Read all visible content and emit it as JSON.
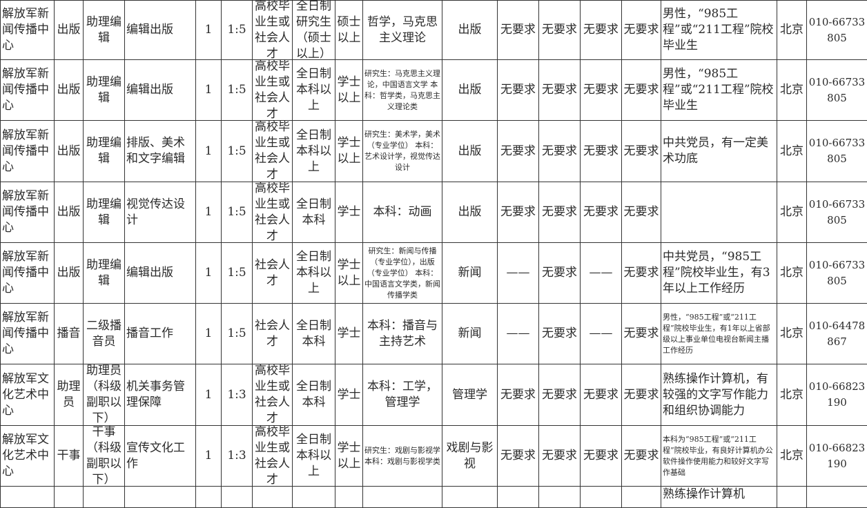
{
  "table": {
    "rows": [
      [
        "解放军新闻传播中心",
        "出版",
        "助理编辑",
        "编辑出版",
        "1",
        "1:5",
        "高校毕业生或社会人才",
        "全日制研究生（硕士以上）",
        "硕士以上",
        "哲学，马克思主义理论",
        "出版",
        "无要求",
        "无要求",
        "无要求",
        "无要求",
        "男性，“985工程”或“211工程”院校毕业生",
        "北京",
        "010-66733805"
      ],
      [
        "解放军新闻传播中心",
        "出版",
        "助理编辑",
        "编辑出版",
        "1",
        "1:5",
        "高校毕业生或社会人才",
        "全日制本科以上",
        "学士以上",
        "研究生：马克思主义理论，中国语言文学 本科：哲学类，马克思主义理论类",
        "出版",
        "无要求",
        "无要求",
        "无要求",
        "无要求",
        "男性，“985工程”或“211工程”院校毕业生",
        "北京",
        "010-66733805"
      ],
      [
        "解放军新闻传播中心",
        "出版",
        "助理编辑",
        "排版、美术和文字编辑",
        "1",
        "1:5",
        "高校毕业生或社会人才",
        "全日制本科以上",
        "学士以上",
        "研究生：美术学，美术（专业学位） 本科：艺术设计学，视觉传达设计",
        "出版",
        "无要求",
        "无要求",
        "无要求",
        "无要求",
        "中共党员，有一定美术功底",
        "北京",
        "010-66733805"
      ],
      [
        "解放军新闻传播中心",
        "出版",
        "助理编辑",
        "视觉传达设计",
        "1",
        "1:5",
        "高校毕业生或社会人才",
        "全日制本科",
        "学士",
        "本科：动画",
        "出版",
        "无要求",
        "无要求",
        "无要求",
        "无要求",
        "",
        "北京",
        "010-66733805"
      ],
      [
        "解放军新闻传播中心",
        "出版",
        "助理编辑",
        "编辑出版",
        "1",
        "1:5",
        "社会人才",
        "全日制本科以上",
        "学士以上",
        "研究生：新闻与传播（专业学位），出版（专业学位） 本科：中国语言文学类，新闻传播学类",
        "新闻",
        "——",
        "无要求",
        "——",
        "无要求",
        "中共党员，“985工程”院校毕业生，有3年以上工作经历",
        "北京",
        "010-66733805"
      ],
      [
        "解放军新闻传播中心",
        "播音",
        "二级播音员",
        "播音工作",
        "1",
        "1:5",
        "社会人才",
        "全日制本科",
        "学士",
        "本科：播音与主持艺术",
        "新闻",
        "——",
        "无要求",
        "——",
        "无要求",
        "男性，“985工程”或“211工程”院校毕业生，有1年以上省部级以上事业单位电视台新闻主播工作经历",
        "北京",
        "010-64478867"
      ],
      [
        "解放军文化艺术中心",
        "助理员",
        "助理员（科级副职以下）",
        "机关事务管理保障",
        "1",
        "1:3",
        "高校毕业生或社会人才",
        "全日制本科",
        "学士",
        "本科：工学，管理学",
        "管理学",
        "无要求",
        "无要求",
        "无要求",
        "无要求",
        "熟练操作计算机，有较强的文字写作能力和组织协调能力",
        "北京",
        "010-66823190"
      ],
      [
        "解放军文化艺术中心",
        "干事",
        "干事（科级副职以下）",
        "宣传文化工作",
        "1",
        "1:3",
        "高校毕业生或社会人才",
        "全日制本科以上",
        "学士以上",
        "研究生：戏剧与影视学 本科：戏剧与影视学类",
        "戏剧与影视",
        "无要求",
        "无要求",
        "无要求",
        "无要求",
        "本科为“985工程”或“211工程”院校毕业，有良好计算机办公软件操作使用能力和较好文字写作基础",
        "北京",
        "010-66823190"
      ],
      [
        "",
        "",
        "",
        "",
        "",
        "",
        "",
        "",
        "",
        "",
        "",
        "",
        "",
        "",
        "",
        "熟练操作计算机",
        "",
        ""
      ]
    ]
  }
}
